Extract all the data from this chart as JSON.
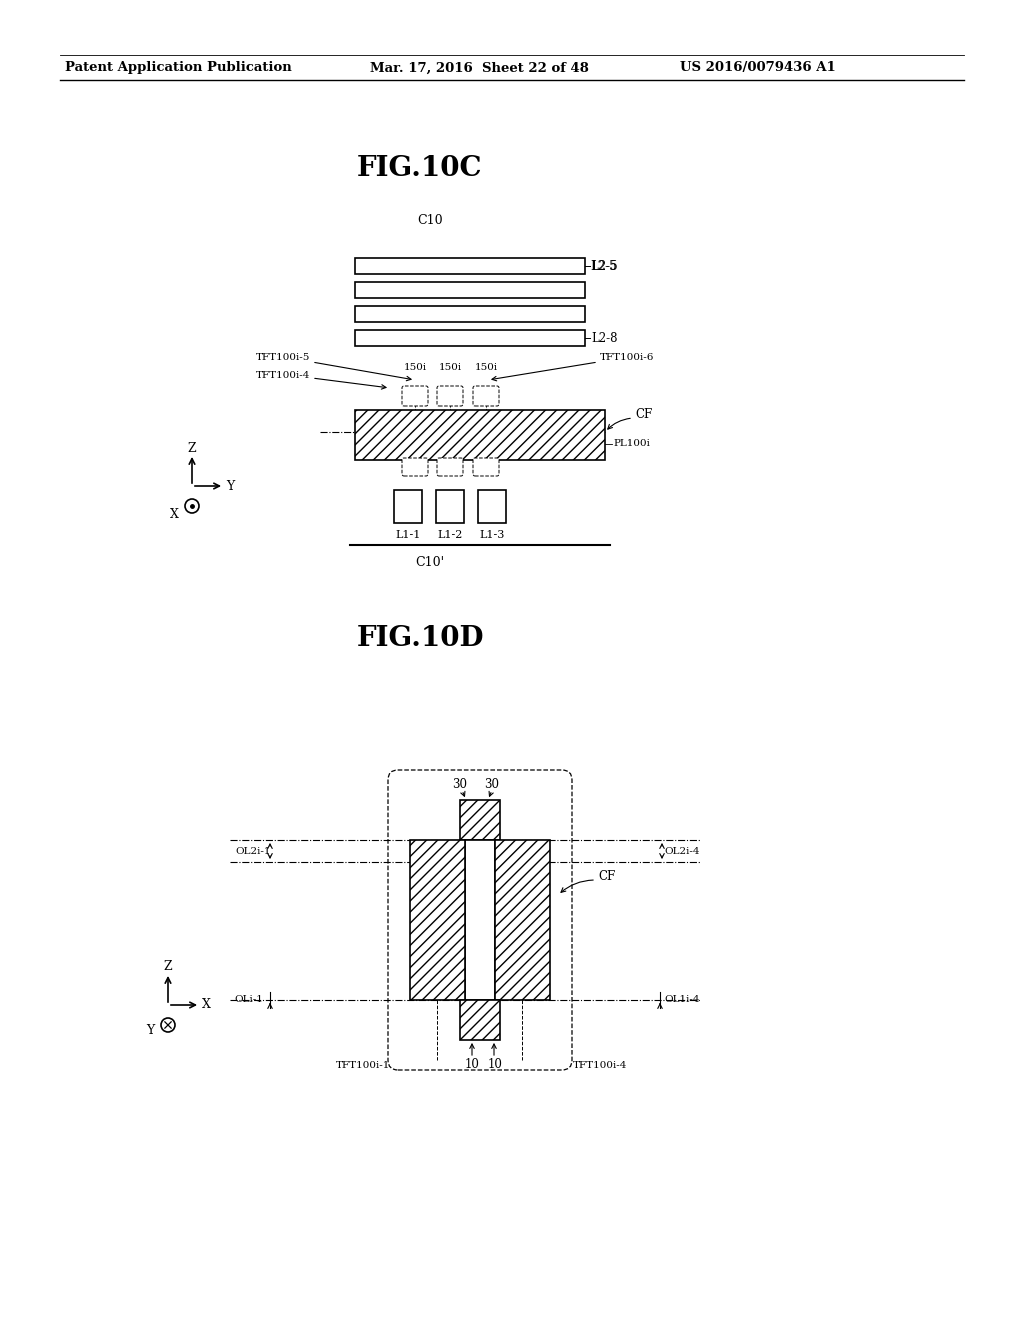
{
  "bg_color": "#ffffff",
  "header_text": "Patent Application Publication",
  "header_date": "Mar. 17, 2016  Sheet 22 of 48",
  "header_patent": "US 2016/0079436 A1",
  "fig10c_title": "FIG.10C",
  "fig10d_title": "FIG.10D",
  "font_color": "#000000"
}
